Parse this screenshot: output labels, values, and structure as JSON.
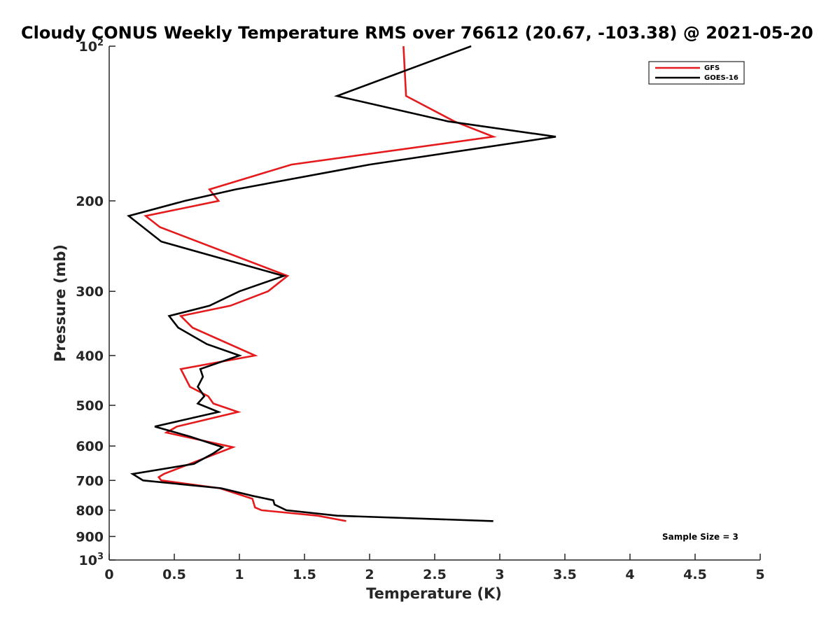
{
  "chart_data": {
    "type": "line",
    "title": "Cloudy CONUS Weekly Temperature RMS over 76612 (20.67, -103.38) @ 2021-05-20",
    "xlabel": "Temperature (K)",
    "ylabel": "Pressure (mb)",
    "xlim": [
      0,
      5
    ],
    "ylim": [
      100,
      1000
    ],
    "yscale": "log",
    "yreversed": true,
    "xticks": [
      0,
      0.5,
      1,
      1.5,
      2,
      2.5,
      3,
      3.5,
      4,
      4.5,
      5
    ],
    "xtick_labels": [
      "0",
      "0.5",
      "1",
      "1.5",
      "2",
      "2.5",
      "3",
      "3.5",
      "4",
      "4.5",
      "5"
    ],
    "yticks": [
      {
        "value": 100,
        "base": "10",
        "exp": "2"
      },
      {
        "value": 200,
        "label": "200"
      },
      {
        "value": 300,
        "label": "300"
      },
      {
        "value": 400,
        "label": "400"
      },
      {
        "value": 500,
        "label": "500"
      },
      {
        "value": 600,
        "label": "600"
      },
      {
        "value": 700,
        "label": "700"
      },
      {
        "value": 800,
        "label": "800"
      },
      {
        "value": 900,
        "label": "900"
      },
      {
        "value": 1000,
        "base": "10",
        "exp": "3"
      }
    ],
    "legend_position": "top-right",
    "annotation": "Sample Size = 3",
    "series": [
      {
        "name": "GFS",
        "color": "#e41a1c",
        "points": [
          [
            2.26,
            100
          ],
          [
            2.28,
            125
          ],
          [
            2.65,
            140
          ],
          [
            2.95,
            150
          ],
          [
            1.4,
            170
          ],
          [
            0.77,
            190
          ],
          [
            0.84,
            200
          ],
          [
            0.28,
            214
          ],
          [
            0.39,
            225
          ],
          [
            1.37,
            280
          ],
          [
            1.22,
            300
          ],
          [
            0.93,
            320
          ],
          [
            0.55,
            335
          ],
          [
            0.64,
            353
          ],
          [
            1.12,
            400
          ],
          [
            0.55,
            425
          ],
          [
            0.62,
            460
          ],
          [
            0.76,
            480
          ],
          [
            0.8,
            496
          ],
          [
            0.99,
            515
          ],
          [
            0.52,
            550
          ],
          [
            0.44,
            565
          ],
          [
            0.95,
            603
          ],
          [
            0.42,
            680
          ],
          [
            0.38,
            690
          ],
          [
            0.4,
            700
          ],
          [
            0.85,
            725
          ],
          [
            1.1,
            760
          ],
          [
            1.12,
            790
          ],
          [
            1.17,
            800
          ],
          [
            1.6,
            820
          ],
          [
            1.82,
            840
          ]
        ]
      },
      {
        "name": "GOES-16",
        "color": "#000000",
        "points": [
          [
            2.78,
            100
          ],
          [
            1.75,
            125
          ],
          [
            2.6,
            140
          ],
          [
            3.43,
            150
          ],
          [
            2.0,
            170
          ],
          [
            0.97,
            190
          ],
          [
            0.58,
            200
          ],
          [
            0.15,
            214
          ],
          [
            0.4,
            240
          ],
          [
            1.34,
            280
          ],
          [
            1.0,
            300
          ],
          [
            0.77,
            320
          ],
          [
            0.46,
            335
          ],
          [
            0.53,
            353
          ],
          [
            0.75,
            380
          ],
          [
            1.0,
            400
          ],
          [
            0.7,
            425
          ],
          [
            0.72,
            440
          ],
          [
            0.68,
            460
          ],
          [
            0.73,
            480
          ],
          [
            0.68,
            496
          ],
          [
            0.84,
            515
          ],
          [
            0.35,
            550
          ],
          [
            0.62,
            575
          ],
          [
            0.87,
            603
          ],
          [
            0.8,
            620
          ],
          [
            0.65,
            650
          ],
          [
            0.18,
            680
          ],
          [
            0.26,
            700
          ],
          [
            0.86,
            725
          ],
          [
            1.1,
            750
          ],
          [
            1.26,
            765
          ],
          [
            1.27,
            780
          ],
          [
            1.36,
            800
          ],
          [
            1.75,
            820
          ],
          [
            2.95,
            840
          ]
        ]
      }
    ]
  }
}
